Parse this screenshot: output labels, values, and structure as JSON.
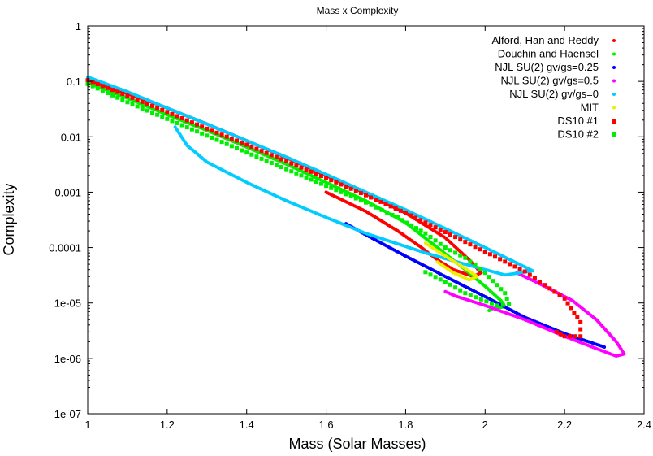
{
  "chart_data": {
    "type": "scatter",
    "title": "Mass x Complexity",
    "xlabel": "Mass (Solar Masses)",
    "ylabel": "Complexity",
    "xlim": [
      1,
      2.4
    ],
    "ylim": [
      1e-07,
      1
    ],
    "y_scale": "log",
    "x_ticks": [
      "1",
      "1.2",
      "1.4",
      "1.6",
      "1.8",
      "2",
      "2.2",
      "2.4"
    ],
    "y_ticks": [
      "1e-07",
      "1e-06",
      "1e-05",
      "0.0001",
      "0.001",
      "0.01",
      "0.1",
      "1"
    ],
    "grid": false,
    "legend_position": "top-right",
    "series": [
      {
        "name": "Alford, Han and Reddy",
        "color": "#ff0000",
        "marker": "dot",
        "points": [
          [
            1.0,
            0.105
          ],
          [
            1.05,
            0.08
          ],
          [
            1.1,
            0.06
          ],
          [
            1.15,
            0.045
          ],
          [
            1.2,
            0.033
          ],
          [
            1.3,
            0.017
          ],
          [
            1.4,
            0.0085
          ],
          [
            1.5,
            0.0042
          ],
          [
            1.6,
            0.002
          ],
          [
            1.7,
            0.00095
          ],
          [
            1.8,
            0.00042
          ],
          [
            1.9,
            0.00015
          ],
          [
            1.96,
            6e-05
          ],
          [
            1.99,
            3.5e-05
          ],
          [
            1.97,
            3e-05
          ],
          [
            1.92,
            4e-05
          ],
          [
            1.88,
            6e-05
          ],
          [
            1.84,
            0.0001
          ],
          [
            1.78,
            0.0002
          ],
          [
            1.7,
            0.00045
          ],
          [
            1.6,
            0.001
          ]
        ]
      },
      {
        "name": "Douchin and Haensel",
        "color": "#00ee00",
        "marker": "dot",
        "points": [
          [
            1.0,
            0.095
          ],
          [
            1.1,
            0.05
          ],
          [
            1.2,
            0.025
          ],
          [
            1.3,
            0.013
          ],
          [
            1.4,
            0.0065
          ],
          [
            1.5,
            0.0032
          ],
          [
            1.6,
            0.0015
          ],
          [
            1.7,
            0.0007
          ],
          [
            1.8,
            0.00028
          ],
          [
            1.88,
            0.0001
          ],
          [
            1.95,
            4e-05
          ],
          [
            2.0,
            2e-05
          ],
          [
            2.04,
            1.1e-05
          ],
          [
            2.05,
            8.5e-06
          ],
          [
            2.02,
            8e-06
          ],
          [
            2.01,
            7.3e-06
          ]
        ]
      },
      {
        "name": "NJL SU(2) gv/gs=0.25",
        "color": "#0000ff",
        "marker": "dot",
        "points": [
          [
            1.65,
            0.00027
          ],
          [
            1.7,
            0.00017
          ],
          [
            1.8,
            7e-05
          ],
          [
            1.9,
            3e-05
          ],
          [
            2.0,
            1.3e-05
          ],
          [
            2.1,
            5.5e-06
          ],
          [
            2.2,
            2.8e-06
          ],
          [
            2.3,
            1.6e-06
          ]
        ]
      },
      {
        "name": "NJL SU(2) gv/gs=0.5",
        "color": "#ff00ff",
        "marker": "dot",
        "points": [
          [
            2.08,
            3.5e-05
          ],
          [
            2.15,
            2e-05
          ],
          [
            2.22,
            1.1e-05
          ],
          [
            2.28,
            5e-06
          ],
          [
            2.33,
            2e-06
          ],
          [
            2.35,
            1.2e-06
          ],
          [
            2.33,
            1.1e-06
          ],
          [
            2.28,
            1.5e-06
          ],
          [
            2.2,
            2.5e-06
          ],
          [
            2.1,
            5e-06
          ],
          [
            2.0,
            9e-06
          ],
          [
            1.93,
            1.3e-05
          ],
          [
            1.9,
            1.6e-05
          ]
        ]
      },
      {
        "name": "NJL SU(2) gv/gs=0",
        "color": "#00ccff",
        "marker": "dot",
        "points": [
          [
            1.0,
            0.12
          ],
          [
            1.1,
            0.065
          ],
          [
            1.2,
            0.033
          ],
          [
            1.3,
            0.017
          ],
          [
            1.4,
            0.0085
          ],
          [
            1.5,
            0.0043
          ],
          [
            1.6,
            0.0021
          ],
          [
            1.7,
            0.001
          ],
          [
            1.8,
            0.00048
          ],
          [
            1.9,
            0.00022
          ],
          [
            2.0,
            0.0001
          ],
          [
            2.12,
            3.8e-05
          ],
          [
            2.05,
            3.2e-05
          ],
          [
            1.95,
            5e-05
          ],
          [
            1.85,
            8e-05
          ],
          [
            1.7,
            0.00018
          ],
          [
            1.6,
            0.00035
          ],
          [
            1.5,
            0.0007
          ],
          [
            1.4,
            0.0015
          ],
          [
            1.3,
            0.0035
          ],
          [
            1.25,
            0.007
          ],
          [
            1.22,
            0.015
          ]
        ]
      },
      {
        "name": "MIT",
        "color": "#eeee00",
        "marker": "dot",
        "points": [
          [
            1.85,
            0.00012
          ],
          [
            1.9,
            7e-05
          ],
          [
            1.95,
            4.2e-05
          ],
          [
            1.98,
            3e-05
          ],
          [
            1.96,
            2.6e-05
          ],
          [
            1.92,
            3.5e-05
          ],
          [
            1.88,
            5.5e-05
          ]
        ]
      },
      {
        "name": "DS10 #1",
        "color": "#ff0000",
        "marker": "square",
        "points": [
          [
            1.0,
            0.105
          ],
          [
            1.1,
            0.055
          ],
          [
            1.2,
            0.028
          ],
          [
            1.3,
            0.014
          ],
          [
            1.4,
            0.0072
          ],
          [
            1.5,
            0.0036
          ],
          [
            1.6,
            0.0018
          ],
          [
            1.7,
            0.00088
          ],
          [
            1.8,
            0.00042
          ],
          [
            1.9,
            0.00019
          ],
          [
            2.0,
            8.4e-05
          ],
          [
            2.1,
            3.7e-05
          ],
          [
            2.2,
            1.2e-05
          ],
          [
            2.24,
            4.5e-06
          ],
          [
            2.24,
            2.5e-06
          ],
          [
            2.2,
            2.5e-06
          ],
          [
            2.18,
            3e-06
          ]
        ]
      },
      {
        "name": "DS10 #2",
        "color": "#00ee00",
        "marker": "square",
        "points": [
          [
            1.0,
            0.09
          ],
          [
            1.1,
            0.042
          ],
          [
            1.2,
            0.021
          ],
          [
            1.3,
            0.0105
          ],
          [
            1.4,
            0.0052
          ],
          [
            1.5,
            0.0026
          ],
          [
            1.6,
            0.0013
          ],
          [
            1.7,
            0.00065
          ],
          [
            1.78,
            0.00035
          ],
          [
            1.85,
            0.00018
          ],
          [
            1.9,
            0.0001
          ],
          [
            1.95,
            6.5e-05
          ],
          [
            2.0,
            3.5e-05
          ],
          [
            2.05,
            1.5e-05
          ],
          [
            2.06,
            9.5e-06
          ],
          [
            2.03,
            9e-06
          ],
          [
            1.95,
            1.5e-05
          ],
          [
            1.9,
            2.4e-05
          ],
          [
            1.85,
            3.6e-05
          ]
        ]
      }
    ]
  }
}
